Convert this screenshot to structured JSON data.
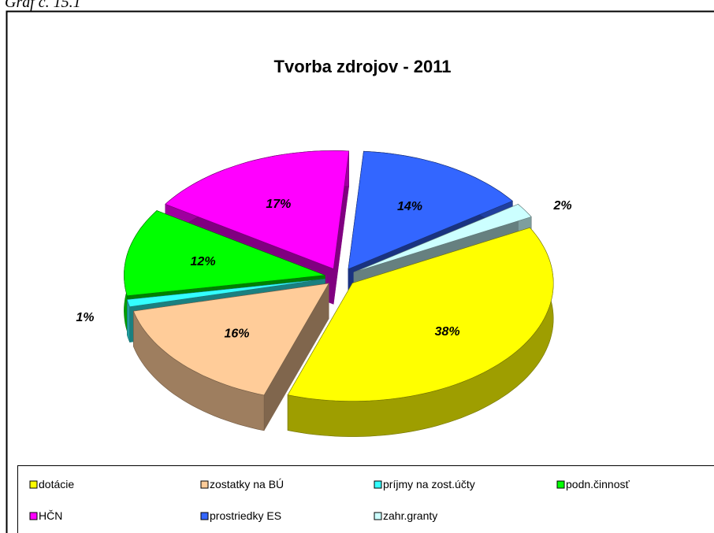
{
  "caption": "Graf č. 15.1",
  "chart_data": {
    "type": "pie3d",
    "title": "Tvorba zdrojov - 2011",
    "categories": [
      "dotácie",
      "zostatky na BÚ",
      "príjmy na zost.účty",
      "podn.činnosť",
      "HČN",
      "prostriedky ES",
      "zahr.granty"
    ],
    "values": [
      38,
      16,
      1,
      12,
      17,
      14,
      2
    ],
    "value_labels": [
      "38%",
      "16%",
      "1%",
      "12%",
      "17%",
      "14%",
      "2%"
    ],
    "colors": [
      "#ffff00",
      "#ffcc99",
      "#33ffff",
      "#00ff00",
      "#ff00ff",
      "#3366ff",
      "#ccffff"
    ],
    "legend": "bottom"
  }
}
